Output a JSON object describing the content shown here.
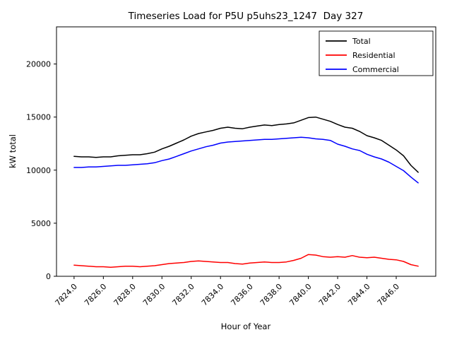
{
  "chart_data": {
    "type": "line",
    "title": "Timeseries Load for P5U p5uhs23_1247  Day 327",
    "xlabel": "Hour of Year",
    "ylabel": "kW total",
    "xlim": [
      7822.8,
      7848.7
    ],
    "ylim": [
      0,
      23500
    ],
    "xticks": [
      7824,
      7826,
      7828,
      7830,
      7832,
      7834,
      7836,
      7838,
      7840,
      7842,
      7844,
      7846
    ],
    "yticks": [
      0,
      5000,
      10000,
      15000,
      20000
    ],
    "grid": false,
    "legend_position": "upper right",
    "x": [
      7824.0,
      7824.5,
      7825.0,
      7825.5,
      7826.0,
      7826.5,
      7827.0,
      7827.5,
      7828.0,
      7828.5,
      7829.0,
      7829.5,
      7830.0,
      7830.5,
      7831.0,
      7831.5,
      7832.0,
      7832.5,
      7833.0,
      7833.5,
      7834.0,
      7834.5,
      7835.0,
      7835.5,
      7836.0,
      7836.5,
      7837.0,
      7837.5,
      7838.0,
      7838.5,
      7839.0,
      7839.5,
      7840.0,
      7840.5,
      7841.0,
      7841.5,
      7842.0,
      7842.5,
      7843.0,
      7843.5,
      7844.0,
      7844.5,
      7845.0,
      7845.5,
      7846.0,
      7846.5,
      7847.0,
      7847.5
    ],
    "series": [
      {
        "name": "Total",
        "color": "#000000",
        "values": [
          11300,
          11250,
          11250,
          11200,
          11250,
          11250,
          11350,
          11400,
          11450,
          11450,
          11550,
          11700,
          12000,
          12250,
          12550,
          12850,
          13200,
          13450,
          13600,
          13750,
          13950,
          14050,
          13950,
          13900,
          14050,
          14150,
          14250,
          14200,
          14300,
          14350,
          14450,
          14700,
          14950,
          15000,
          14800,
          14600,
          14300,
          14050,
          13950,
          13650,
          13250,
          13050,
          12800,
          12350,
          11900,
          11350,
          10450,
          9800
        ]
      },
      {
        "name": "Residential",
        "color": "#ff0000",
        "values": [
          1050,
          1000,
          950,
          900,
          900,
          850,
          900,
          950,
          950,
          900,
          950,
          1000,
          1100,
          1200,
          1250,
          1300,
          1400,
          1450,
          1400,
          1350,
          1300,
          1300,
          1200,
          1150,
          1250,
          1300,
          1350,
          1300,
          1300,
          1350,
          1500,
          1700,
          2050,
          2000,
          1850,
          1800,
          1850,
          1800,
          1950,
          1800,
          1750,
          1800,
          1700,
          1600,
          1550,
          1400,
          1100,
          950
        ]
      },
      {
        "name": "Commercial",
        "color": "#0000ff",
        "values": [
          10250,
          10250,
          10300,
          10300,
          10350,
          10400,
          10450,
          10450,
          10500,
          10550,
          10600,
          10700,
          10900,
          11050,
          11300,
          11550,
          11800,
          12000,
          12200,
          12350,
          12550,
          12650,
          12700,
          12750,
          12800,
          12850,
          12900,
          12900,
          12950,
          13000,
          13050,
          13100,
          13050,
          12950,
          12900,
          12800,
          12450,
          12250,
          12000,
          11850,
          11500,
          11250,
          11050,
          10750,
          10350,
          9950,
          9350,
          8800
        ]
      }
    ]
  }
}
